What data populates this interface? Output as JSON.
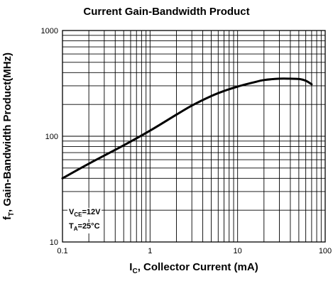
{
  "chart_data": {
    "type": "line",
    "title": "Current Gain-Bandwidth Product",
    "ylabel_main": "f",
    "ylabel_sub": "T",
    "ylabel_rest": ", Gain-Bandwidth Product(MHz)",
    "xlabel_main": "I",
    "xlabel_sub": "C",
    "xlabel_rest": ", Collector Current (mA)",
    "x_scale": "log",
    "y_scale": "log",
    "xlim": [
      0.1,
      100
    ],
    "ylim": [
      10,
      1000
    ],
    "grid": true,
    "x_ticks": [
      0.1,
      1,
      10,
      100
    ],
    "x_tick_labels": [
      "0.1",
      "1",
      "10",
      "100"
    ],
    "y_ticks": [
      10,
      100,
      1000
    ],
    "y_tick_labels": [
      "10",
      "100",
      "1000"
    ],
    "annotations": [
      {
        "main": "V",
        "sub": "CE",
        "rest": "=12V"
      },
      {
        "main": "T",
        "sub": "A",
        "rest": "=25°C"
      }
    ],
    "series": [
      {
        "x": [
          0.1,
          0.2,
          0.5,
          1,
          2,
          3,
          5,
          7,
          10,
          15,
          20,
          30,
          40,
          50,
          60,
          70
        ],
        "y": [
          40,
          55,
          82,
          113,
          160,
          195,
          240,
          268,
          295,
          322,
          340,
          350,
          350,
          348,
          335,
          310
        ]
      }
    ]
  }
}
